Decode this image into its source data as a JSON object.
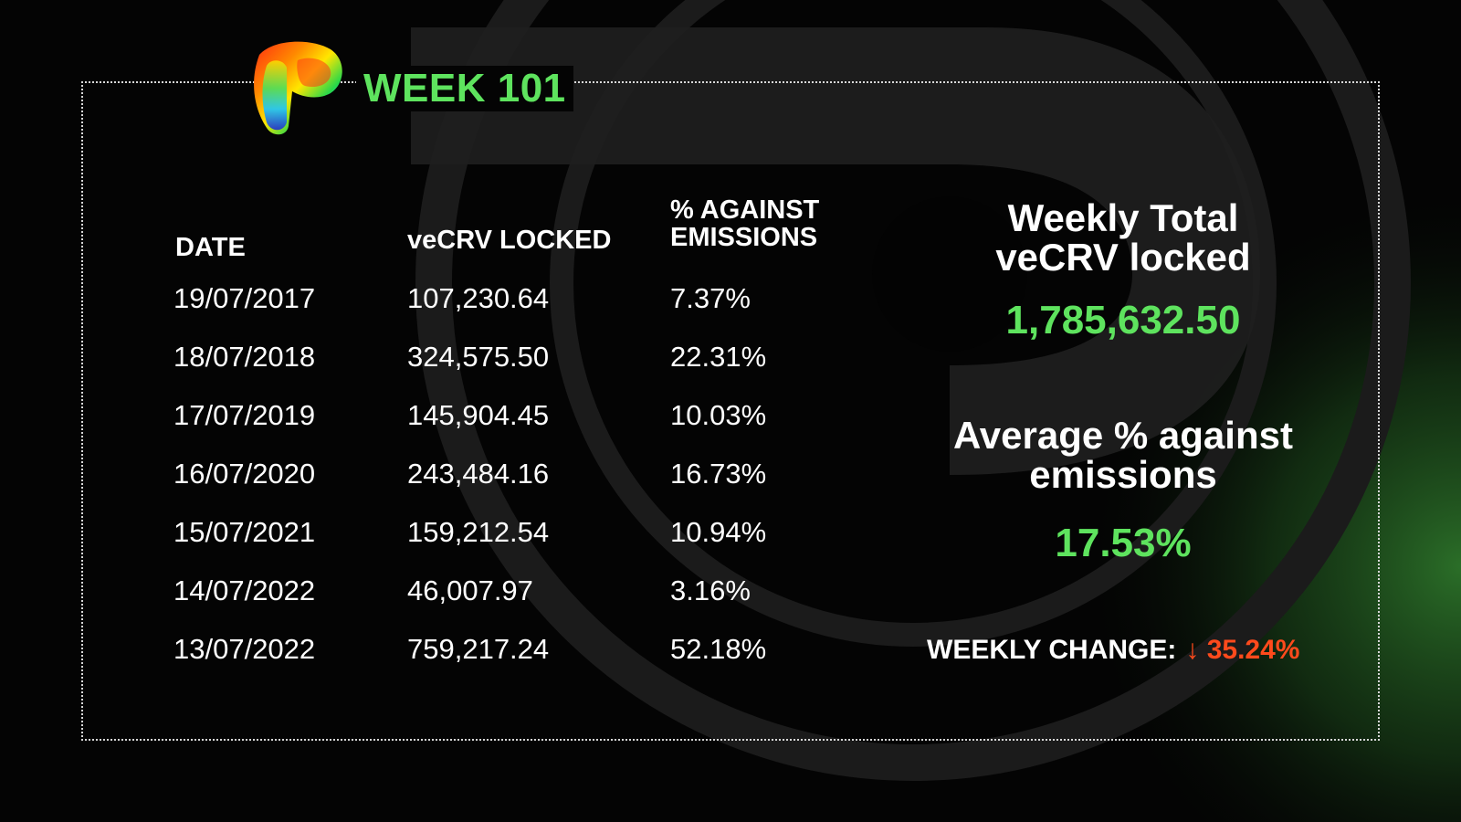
{
  "title": "WEEK 101",
  "table": {
    "headers": {
      "date": "DATE",
      "locked": "veCRV LOCKED",
      "pct_line1": "% AGAINST",
      "pct_line2": "EMISSIONS"
    },
    "rows": [
      {
        "date": "19/07/2017",
        "locked": "107,230.64",
        "pct": "7.37%"
      },
      {
        "date": "18/07/2018",
        "locked": "324,575.50",
        "pct": "22.31%"
      },
      {
        "date": "17/07/2019",
        "locked": "145,904.45",
        "pct": "10.03%"
      },
      {
        "date": "16/07/2020",
        "locked": "243,484.16",
        "pct": "16.73%"
      },
      {
        "date": "15/07/2021",
        "locked": "159,212.54",
        "pct": "10.94%"
      },
      {
        "date": "14/07/2022",
        "locked": "46,007.97",
        "pct": "3.16%"
      },
      {
        "date": "13/07/2022",
        "locked": "759,217.24",
        "pct": "52.18%"
      }
    ]
  },
  "summary": {
    "total_heading_line1": "Weekly Total",
    "total_heading_line2": "veCRV locked",
    "total_value": "1,785,632.50",
    "avg_heading_line1": "Average % against",
    "avg_heading_line2": "emissions",
    "avg_value": "17.53%",
    "weekly_change_label": "WEEKLY CHANGE:",
    "weekly_change_arrow": "↓",
    "weekly_change_value": "35.24%"
  },
  "colors": {
    "background": "#040404",
    "accent_green": "#5ee35e",
    "negative_red": "#ff4a1c",
    "text": "#ffffff"
  },
  "icons": [
    "curve-logo"
  ]
}
